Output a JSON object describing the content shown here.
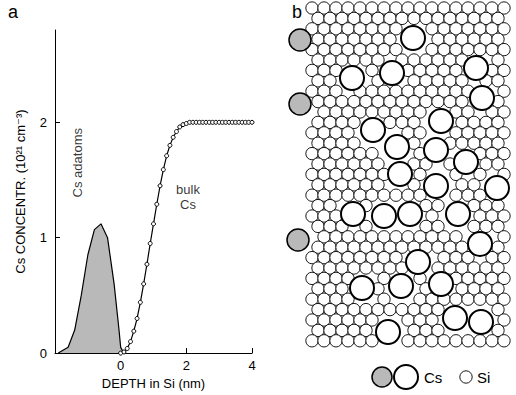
{
  "chart_data": {
    "type": "line",
    "panel_label": "a",
    "x_label": "DEPTH in Si (nm)",
    "y_label": "Cs CONCENTR. (10²¹ cm⁻³)",
    "xlim": [
      -2,
      4
    ],
    "xticks": [
      0,
      2,
      4
    ],
    "ylim": [
      0,
      2.8
    ],
    "yticks": [
      0,
      1,
      2
    ],
    "series": [
      {
        "type": "area",
        "color": "#b9b9b9",
        "x": [
          -1.9,
          -1.6,
          -1.4,
          -1.2,
          -1.0,
          -0.8,
          -0.6,
          -0.4,
          -0.2,
          -0.05,
          0,
          0.1
        ],
        "values": [
          0,
          0.05,
          0.2,
          0.5,
          0.85,
          1.07,
          1.12,
          1.0,
          0.6,
          0.2,
          0.05,
          0
        ]
      },
      {
        "type": "line",
        "marker": "circle",
        "color": "#000000",
        "x": [
          0,
          0.1,
          0.2,
          0.3,
          0.4,
          0.5,
          0.6,
          0.7,
          0.8,
          0.9,
          1.0,
          1.1,
          1.2,
          1.3,
          1.4,
          1.5,
          1.6,
          1.7,
          1.8,
          1.9,
          2.0,
          2.1,
          2.2,
          2.3,
          2.4,
          2.5,
          2.6,
          2.7,
          2.8,
          2.9,
          3.0,
          3.1,
          3.2,
          3.3,
          3.4,
          3.5,
          3.6,
          3.7,
          3.8,
          3.9,
          4.0
        ],
        "values": [
          0,
          0.01,
          0.04,
          0.1,
          0.19,
          0.3,
          0.44,
          0.6,
          0.77,
          0.95,
          1.12,
          1.29,
          1.45,
          1.59,
          1.71,
          1.8,
          1.87,
          1.92,
          1.96,
          1.98,
          1.99,
          2.0,
          2.0,
          2.0,
          2.0,
          2.0,
          2.0,
          2.0,
          2.0,
          2.0,
          2.0,
          2.0,
          2.0,
          2.0,
          2.0,
          2.0,
          2.0,
          2.0,
          2.0,
          2.0,
          2.0
        ]
      }
    ],
    "annotations": [
      {
        "text": "Cs adatoms",
        "x": -1.3,
        "y": 1.65
      },
      {
        "text": "bulk Cs",
        "x": 2.05,
        "y": 1.35
      }
    ]
  },
  "diagram": {
    "panel_label": "b",
    "legend": [
      "Cs",
      "Si"
    ]
  }
}
